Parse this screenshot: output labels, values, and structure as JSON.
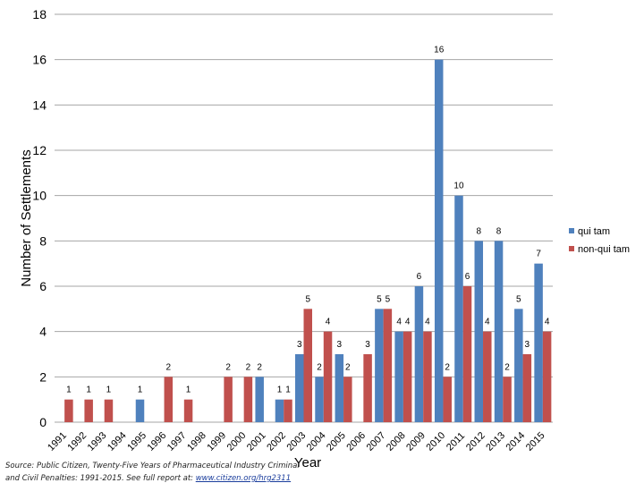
{
  "chart_data": {
    "type": "bar",
    "categories": [
      "1991",
      "1992",
      "1993",
      "1994",
      "1995",
      "1996",
      "1997",
      "1998",
      "1999",
      "2000",
      "2001",
      "2002",
      "2003",
      "2004",
      "2005",
      "2006",
      "2007",
      "2008",
      "2009",
      "2010",
      "2011",
      "2012",
      "2013",
      "2014",
      "2015"
    ],
    "series": [
      {
        "name": "qui tam",
        "color": "#4f81bd",
        "values": [
          0,
          0,
          0,
          0,
          1,
          0,
          0,
          0,
          0,
          0,
          2,
          1,
          3,
          2,
          3,
          0,
          5,
          4,
          6,
          16,
          10,
          8,
          8,
          5,
          7
        ]
      },
      {
        "name": "non-qui tam",
        "color": "#c0504d",
        "values": [
          1,
          1,
          1,
          0,
          0,
          2,
          1,
          0,
          2,
          2,
          0,
          1,
          5,
          4,
          2,
          3,
          5,
          4,
          4,
          2,
          6,
          4,
          2,
          3,
          4
        ]
      }
    ],
    "ylabel": "Number of Settlements",
    "xlabel": "Year",
    "ylim": [
      0,
      18
    ],
    "yticks": [
      "0",
      "2",
      "4",
      "6",
      "8",
      "10",
      "12",
      "14",
      "16",
      "18"
    ],
    "grid": true,
    "legend_position": "right",
    "data_labels": true,
    "source_text": "Source: Public Citizen, Twenty-Five Years of Pharmaceutical Industry Criminal and Civil Penalties: 1991-2015. See full report at:",
    "source_link": "www.citizen.org/hrg2311"
  }
}
